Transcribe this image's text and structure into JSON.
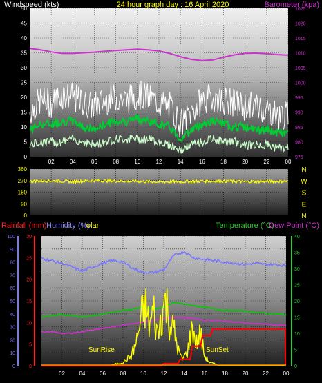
{
  "chart_data": [
    {
      "type": "line",
      "panel": "wind_pressure",
      "title": "24 hour graph day : 16 April 2020",
      "left_label": "Windspeed (kts)",
      "right_label": "Barometer (kpa)",
      "x_ticks": [
        "02",
        "04",
        "06",
        "08",
        "10",
        "12",
        "14",
        "16",
        "18",
        "20",
        "22",
        "00"
      ],
      "x_range_hours": [
        0,
        24
      ],
      "ylim_left": [
        0,
        50
      ],
      "yticks_left": [
        "0",
        "5",
        "10",
        "15",
        "20",
        "25",
        "30",
        "35",
        "40",
        "45",
        "50"
      ],
      "ylim_right": [
        975,
        1025
      ],
      "yticks_right": [
        "975",
        "980",
        "985",
        "990",
        "995",
        "1000",
        "1005",
        "1010",
        "1015",
        "1020",
        "1025"
      ],
      "grid": true,
      "series": [
        {
          "name": "Barometer",
          "axis": "right",
          "color": "#cc33cc",
          "x": [
            0,
            1,
            2,
            3,
            4,
            5,
            6,
            7,
            8,
            9,
            10,
            11,
            12,
            13,
            14,
            15,
            16,
            17,
            18,
            19,
            20,
            21,
            22,
            23,
            24
          ],
          "values": [
            1011.5,
            1011,
            1010.3,
            1009.8,
            1009.8,
            1010,
            1010.2,
            1010.5,
            1010.8,
            1011,
            1011.2,
            1011,
            1010.6,
            1009.8,
            1008.7,
            1007.8,
            1007.4,
            1007.6,
            1008.5,
            1009.3,
            1009.8,
            1009.9,
            1009.7,
            1009.4,
            1009.2
          ]
        },
        {
          "name": "Wind gust",
          "axis": "left",
          "color": "#ffffff",
          "x": [
            0,
            1,
            2,
            3,
            4,
            5,
            6,
            7,
            8,
            9,
            10,
            11,
            12,
            13,
            14,
            15,
            16,
            17,
            18,
            19,
            20,
            21,
            22,
            23,
            24
          ],
          "values": [
            15,
            19,
            18,
            21,
            20,
            18,
            17,
            19,
            20,
            19,
            21,
            20,
            18,
            17,
            11,
            15,
            19,
            20,
            19,
            18,
            17,
            17,
            16,
            14,
            14
          ]
        },
        {
          "name": "Wind average",
          "axis": "left",
          "color": "#00cc33",
          "x": [
            0,
            1,
            2,
            3,
            4,
            5,
            6,
            7,
            8,
            9,
            10,
            11,
            12,
            13,
            14,
            15,
            16,
            17,
            18,
            19,
            20,
            21,
            22,
            23,
            24
          ],
          "values": [
            9,
            11,
            11,
            12,
            12,
            10,
            9,
            11,
            12,
            12,
            13,
            12,
            11,
            10,
            6,
            9,
            11,
            12,
            11,
            10,
            10,
            9,
            9,
            8,
            8
          ]
        },
        {
          "name": "Wind lull",
          "axis": "left",
          "color": "#ccffcc",
          "x": [
            0,
            1,
            2,
            3,
            4,
            5,
            6,
            7,
            8,
            9,
            10,
            11,
            12,
            13,
            14,
            15,
            16,
            17,
            18,
            19,
            20,
            21,
            22,
            23,
            24
          ],
          "values": [
            4,
            5,
            5,
            5,
            6,
            5,
            4,
            5,
            6,
            6,
            6,
            6,
            5,
            4,
            2,
            4,
            5,
            6,
            5,
            5,
            4,
            4,
            4,
            3,
            3
          ]
        }
      ]
    },
    {
      "type": "line",
      "panel": "wind_direction",
      "ylim": [
        0,
        360
      ],
      "yticks": [
        "0",
        "90",
        "180",
        "270",
        "360"
      ],
      "compass_labels": [
        "N",
        "W",
        "S",
        "E",
        "N"
      ],
      "grid": true,
      "series": [
        {
          "name": "Wind direction",
          "color": "#ffff00",
          "x": [
            0,
            2,
            4,
            6,
            8,
            10,
            12,
            14,
            16,
            18,
            20,
            22,
            24
          ],
          "values": [
            265,
            268,
            262,
            270,
            266,
            264,
            260,
            262,
            265,
            266,
            262,
            264,
            264
          ]
        }
      ]
    },
    {
      "type": "line",
      "panel": "temp_rain_hum_solar",
      "labels": {
        "rainfall": "Rainfall (mm)",
        "humidity": "Humidity (%)",
        "solar": "olar",
        "temperature": "Temperature (°C)",
        "dewpoint": "Dew Point (°C)"
      },
      "annotations": {
        "sunrise": "SunRise",
        "sunset": "SunSet"
      },
      "x_ticks": [
        "02",
        "04",
        "06",
        "08",
        "10",
        "12",
        "14",
        "16",
        "18",
        "20",
        "22",
        "00"
      ],
      "ylim_humidity": [
        0,
        100
      ],
      "yticks_humidity": [
        "0",
        "10",
        "20",
        "30",
        "40",
        "50",
        "60",
        "70",
        "80",
        "90",
        "100"
      ],
      "ylim_rain": [
        0,
        30
      ],
      "yticks_rain": [
        "0",
        "5",
        "10",
        "15",
        "20",
        "25",
        "30"
      ],
      "ylim_temp": [
        0,
        40
      ],
      "yticks_temp": [
        "0",
        "5",
        "10",
        "15",
        "20",
        "25",
        "30",
        "35",
        "40"
      ],
      "grid": true,
      "series": [
        {
          "name": "Humidity",
          "axis": "humidity",
          "color": "#7777ff",
          "x": [
            0,
            1,
            2,
            3,
            4,
            5,
            6,
            7,
            8,
            9,
            10,
            11,
            12,
            13,
            14,
            15,
            16,
            17,
            18,
            19,
            20,
            21,
            22,
            23,
            24
          ],
          "values": [
            83,
            81,
            79,
            76,
            73,
            76,
            79,
            81,
            80,
            75,
            72,
            72,
            74,
            85,
            88,
            83,
            82,
            81,
            80,
            79,
            78,
            79,
            78,
            78,
            77
          ]
        },
        {
          "name": "Temperature",
          "axis": "temp",
          "color": "#00cc00",
          "x": [
            0,
            1,
            2,
            3,
            4,
            5,
            6,
            7,
            8,
            9,
            10,
            11,
            12,
            13,
            14,
            15,
            16,
            17,
            18,
            19,
            20,
            21,
            22,
            23,
            24
          ],
          "values": [
            15,
            15.5,
            15.8,
            15.5,
            15,
            15.5,
            16,
            16.5,
            17,
            17.5,
            18,
            17.5,
            18,
            19.5,
            19,
            18.5,
            18,
            17.5,
            17,
            17,
            16.8,
            16.5,
            16.2,
            16,
            15.8
          ]
        },
        {
          "name": "Dew point",
          "axis": "temp",
          "color": "#cc33cc",
          "x": [
            0,
            1,
            2,
            3,
            4,
            5,
            6,
            7,
            8,
            9,
            10,
            11,
            12,
            13,
            14,
            15,
            16,
            17,
            18,
            19,
            20,
            21,
            22,
            23,
            24
          ],
          "values": [
            10.5,
            10.5,
            10,
            10,
            10.5,
            11,
            11.5,
            12,
            12.5,
            13,
            13.5,
            14,
            14.5,
            15,
            14.8,
            14.5,
            14,
            14,
            13.8,
            13.5,
            13.2,
            13,
            12.8,
            12.5,
            12.5
          ]
        },
        {
          "name": "Solar",
          "axis": "temp",
          "color": "#ffff00",
          "x": [
            0,
            6.5,
            7,
            8,
            8.8,
            9.3,
            9.8,
            10.2,
            10.6,
            11,
            11.4,
            11.8,
            12.2,
            12.6,
            13,
            13.4,
            13.8,
            14.3,
            14.8,
            15.2,
            15.6,
            16,
            16.5,
            17,
            17.5,
            24
          ],
          "values": [
            0,
            0,
            0.3,
            1,
            3,
            7,
            15,
            18,
            12,
            17,
            9,
            16,
            20,
            13,
            11,
            5,
            2,
            4,
            12,
            7,
            10,
            3,
            1,
            0.5,
            0,
            0
          ]
        },
        {
          "name": "Rainfall",
          "axis": "rain",
          "color": "#ff0000",
          "x": [
            0,
            11.8,
            12,
            13.4,
            13.6,
            14.6,
            14.8,
            15.6,
            15.8,
            16.6,
            16.8,
            24
          ],
          "values": [
            0,
            0,
            0.5,
            0.5,
            1.5,
            1.5,
            4.5,
            4.5,
            7,
            7,
            8.5,
            8.5
          ]
        }
      ]
    }
  ]
}
